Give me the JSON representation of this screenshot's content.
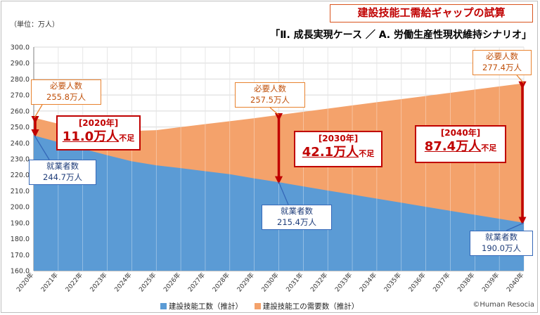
{
  "title": "建設技能工需給ギャップの試算",
  "subtitle": "「Ⅱ. 成長実現ケース ／ A. 労働生産性現状維持シナリオ」",
  "unit": "（単位：万人）",
  "copyright": "©Human Resocia",
  "colors": {
    "supply": "#5b9bd5",
    "demand": "#f4a26b",
    "accent": "#c00000",
    "title": "#c00000"
  },
  "callouts": {
    "d2020": {
      "line1": "必要人数",
      "line2": "255.8万人"
    },
    "d2030": {
      "line1": "必要人数",
      "line2": "257.5万人"
    },
    "d2040": {
      "line1": "必要人数",
      "line2": "277.4万人"
    },
    "s2020": {
      "line1": "就業者数",
      "line2": "244.7万人"
    },
    "s2030": {
      "line1": "就業者数",
      "line2": "215.4万人"
    },
    "s2040": {
      "line1": "就業者数",
      "line2": "190.0万人"
    }
  },
  "shortages": {
    "g2020": {
      "year": "[2020年]",
      "value": "11.0万人",
      "suffix": "不足"
    },
    "g2030": {
      "year": "[2030年]",
      "value": "42.1万人",
      "suffix": "不足"
    },
    "g2040": {
      "year": "[2040年]",
      "value": "87.4万人",
      "suffix": "不足"
    }
  },
  "chart_data": {
    "type": "area",
    "title": "建設技能工需給ギャップの試算",
    "subtitle": "「Ⅱ. 成長実現ケース ／ A. 労働生産性現状維持シナリオ」",
    "ylabel": "（単位：万人）",
    "ylim": [
      160,
      300
    ],
    "yticks": [
      "160.0",
      "170.0",
      "180.0",
      "190.0",
      "200.0",
      "210.0",
      "220.0",
      "230.0",
      "240.0",
      "250.0",
      "260.0",
      "270.0",
      "280.0",
      "290.0",
      "300.0"
    ],
    "categories": [
      "2020年",
      "2021年",
      "2022年",
      "2023年",
      "2024年",
      "2025年",
      "2026年",
      "2027年",
      "2028年",
      "2029年",
      "2030年",
      "2031年",
      "2032年",
      "2033年",
      "2034年",
      "2035年",
      "2036年",
      "2037年",
      "2038年",
      "2039年",
      "2040年"
    ],
    "grid": true,
    "legend": "bottom",
    "series": [
      {
        "name": "建設技能工数（推計）",
        "color": "#5b9bd5",
        "values": [
          244.7,
          240.5,
          236.4,
          232.3,
          228.5,
          226.0,
          224.2,
          222.3,
          220.4,
          217.8,
          215.4,
          212.8,
          210.2,
          207.7,
          205.1,
          202.6,
          200.0,
          197.5,
          195.0,
          192.5,
          190.0
        ]
      },
      {
        "name": "建設技能工の需要数（推計）",
        "color": "#f4a26b",
        "values": [
          255.8,
          252.0,
          249.5,
          248.0,
          247.5,
          248.0,
          249.9,
          251.8,
          253.6,
          255.5,
          257.5,
          259.5,
          261.5,
          263.5,
          265.5,
          267.4,
          269.4,
          271.4,
          273.4,
          275.4,
          277.4
        ]
      }
    ]
  }
}
